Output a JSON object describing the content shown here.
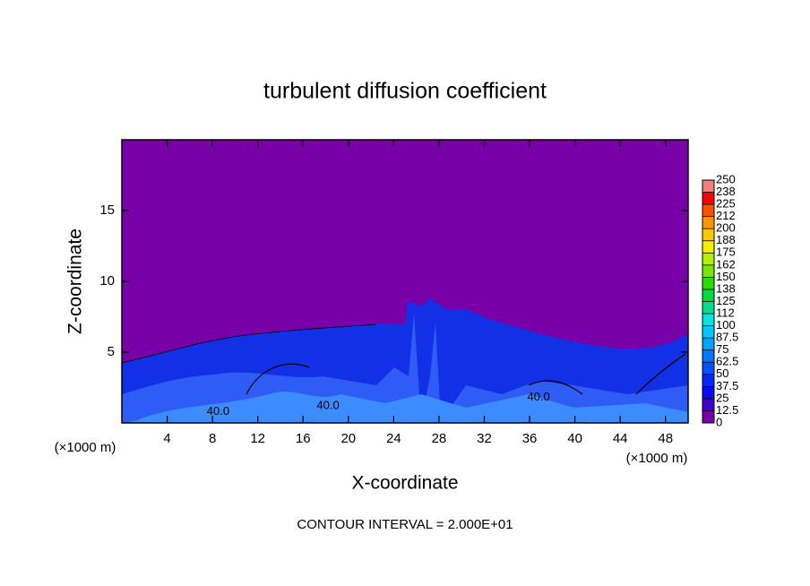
{
  "chart_data": {
    "type": "contour",
    "title": "turbulent diffusion coefficient",
    "xlabel": "X-coordinate",
    "ylabel": "Z-coordinate",
    "x_unit": "(×1000 m)",
    "x_unit_right": "(×1000 m)",
    "footer": "CONTOUR INTERVAL = 2.000E+01",
    "xlim": [
      0,
      50
    ],
    "ylim": [
      0,
      20
    ],
    "xticks": [
      4,
      8,
      12,
      16,
      20,
      24,
      28,
      32,
      36,
      40,
      44,
      48
    ],
    "yticks": [
      5,
      10,
      15
    ],
    "contour_labels": [
      {
        "text": "40.0",
        "x": 8.5,
        "y": 0.8
      },
      {
        "text": "40.0",
        "x": 18.2,
        "y": 1.2
      },
      {
        "text": "40.0",
        "x": 36.8,
        "y": 1.8
      }
    ],
    "colorbar": {
      "ticks": [
        0,
        12.5,
        25,
        37.5,
        50,
        62.5,
        75,
        87.5,
        100,
        {
          "value": 112.5,
          "label": "112"
        },
        125,
        {
          "value": 137.5,
          "label": "138"
        },
        150,
        {
          "value": 162.5,
          "label": "162"
        },
        175,
        {
          "value": 187.5,
          "label": "188"
        },
        200,
        {
          "value": 212.5,
          "label": "212"
        },
        225,
        {
          "value": 237.5,
          "label": "238"
        },
        250
      ],
      "colors": [
        "#7800a8",
        "#4000c8",
        "#0a0af0",
        "#0028ff",
        "#0050ff",
        "#0078ff",
        "#00a0ff",
        "#00c8ff",
        "#00e6e6",
        "#00dc8c",
        "#00dc3c",
        "#28dc00",
        "#78e600",
        "#b4f000",
        "#f0f000",
        "#ffc800",
        "#ff9600",
        "#ff5000",
        "#ff0000",
        "#f08080"
      ]
    }
  }
}
